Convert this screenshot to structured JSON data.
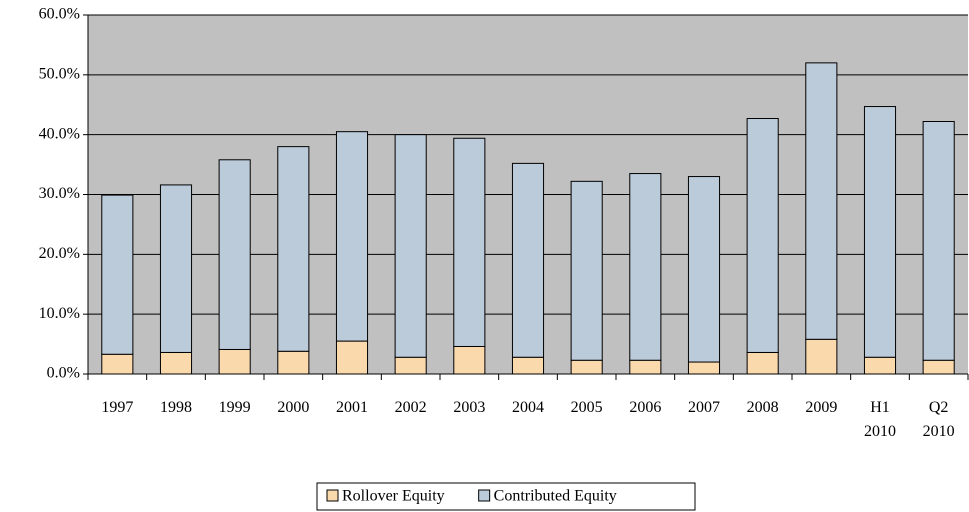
{
  "chart_data": {
    "type": "stacked_bar",
    "categories": [
      "1997",
      "1998",
      "1999",
      "2000",
      "2001",
      "2002",
      "2003",
      "2004",
      "2005",
      "2006",
      "2007",
      "2008",
      "2009",
      "H1 2010",
      "Q2 2010"
    ],
    "series": [
      {
        "name": "Rollover Equity",
        "color": "#fad9ad",
        "values": [
          3.3,
          3.6,
          4.1,
          3.8,
          5.5,
          2.8,
          4.6,
          2.8,
          2.3,
          2.3,
          2.0,
          3.6,
          5.8,
          2.8,
          2.3
        ]
      },
      {
        "name": "Contributed Equity",
        "color": "#bccbda",
        "values": [
          26.6,
          28.0,
          31.7,
          34.2,
          35.0,
          37.2,
          34.8,
          32.4,
          29.9,
          31.2,
          31.0,
          39.1,
          46.2,
          41.9,
          39.9
        ]
      }
    ],
    "ylim": [
      0,
      60
    ],
    "yticks": [
      {
        "value": 0,
        "label": "0.0%"
      },
      {
        "value": 10,
        "label": "10.0%"
      },
      {
        "value": 20,
        "label": "20.0%"
      },
      {
        "value": 30,
        "label": "30.0%"
      },
      {
        "value": 40,
        "label": "40.0%"
      },
      {
        "value": 50,
        "label": "50.0%"
      },
      {
        "value": 60,
        "label": "60.0%"
      }
    ],
    "grid": true,
    "plot_background": "#c0c0c0",
    "legend": "bottom"
  }
}
